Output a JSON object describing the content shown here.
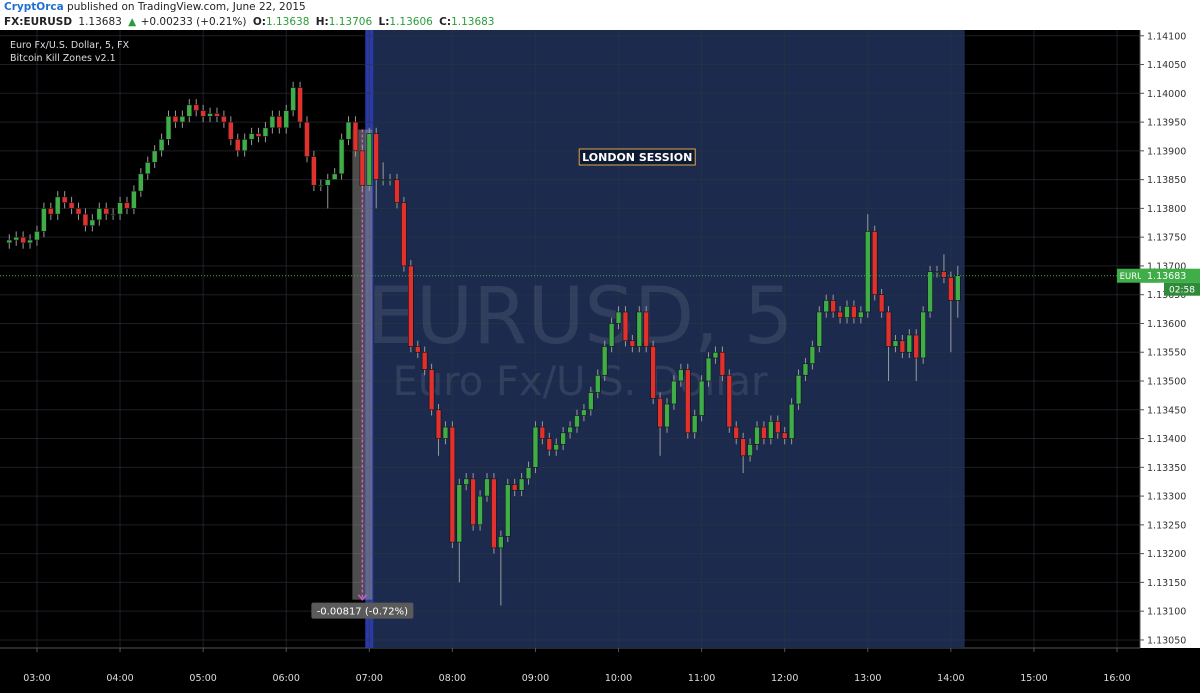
{
  "header": {
    "publisher": "CryptOrca",
    "published": "published on TradingView.com, June 22, 2015",
    "symbol": "FX:EURUSD",
    "price": "1.13683",
    "arrow": "▲",
    "change": "+0.00233 (+0.21%)",
    "o_label": "O:",
    "o": "1.13638",
    "h_label": "H:",
    "h": "1.13706",
    "l_label": "L:",
    "l": "1.13606",
    "c_label": "C:",
    "c": "1.13683"
  },
  "chart_data": {
    "type": "candlestick",
    "legend": [
      "Euro Fx/U.S. Dollar, 5, FX",
      "Bitcoin Kill Zones v2.1"
    ],
    "watermark": "EURUSD, 5",
    "watermark_sub": "Euro Fx/U.S. Dollar",
    "up_color": "#3fae49",
    "down_color": "#e0312f",
    "grid": true,
    "xlim": [
      153.3,
      976.6
    ],
    "ylim": [
      1.13036,
      1.1411
    ],
    "xticks": [
      {
        "value": 180,
        "label": "03:00"
      },
      {
        "value": 240,
        "label": "04:00"
      },
      {
        "value": 300,
        "label": "05:00"
      },
      {
        "value": 360,
        "label": "06:00"
      },
      {
        "value": 420,
        "label": "07:00"
      },
      {
        "value": 480,
        "label": "08:00"
      },
      {
        "value": 540,
        "label": "09:00"
      },
      {
        "value": 600,
        "label": "10:00"
      },
      {
        "value": 660,
        "label": "11:00"
      },
      {
        "value": 720,
        "label": "12:00"
      },
      {
        "value": 780,
        "label": "13:00"
      },
      {
        "value": 840,
        "label": "14:00"
      },
      {
        "value": 900,
        "label": "15:00"
      },
      {
        "value": 960,
        "label": "16:00"
      }
    ],
    "yticks": [
      {
        "value": 1.141,
        "label": "1.14100"
      },
      {
        "value": 1.1405,
        "label": "1.14050"
      },
      {
        "value": 1.14,
        "label": "1.14000"
      },
      {
        "value": 1.1395,
        "label": "1.13950"
      },
      {
        "value": 1.139,
        "label": "1.13900"
      },
      {
        "value": 1.1385,
        "label": "1.13850"
      },
      {
        "value": 1.138,
        "label": "1.13800"
      },
      {
        "value": 1.1375,
        "label": "1.13750"
      },
      {
        "value": 1.137,
        "label": "1.13700"
      },
      {
        "value": 1.1365,
        "label": "1.13650"
      },
      {
        "value": 1.136,
        "label": "1.13600"
      },
      {
        "value": 1.1355,
        "label": "1.13550"
      },
      {
        "value": 1.135,
        "label": "1.13500"
      },
      {
        "value": 1.1345,
        "label": "1.13450"
      },
      {
        "value": 1.134,
        "label": "1.13400"
      },
      {
        "value": 1.1335,
        "label": "1.13350"
      },
      {
        "value": 1.133,
        "label": "1.13300"
      },
      {
        "value": 1.1325,
        "label": "1.13250"
      },
      {
        "value": 1.132,
        "label": "1.13200"
      },
      {
        "value": 1.1315,
        "label": "1.13150"
      },
      {
        "value": 1.131,
        "label": "1.13100"
      },
      {
        "value": 1.1305,
        "label": "1.13050"
      }
    ],
    "session": {
      "label": "LONDON SESSION",
      "start": 420,
      "end": 850
    },
    "measure": {
      "label": "-0.00817 (-0.72%)",
      "time": 415,
      "from": 1.13937,
      "to": 1.1312
    },
    "last_price": 1.13683,
    "symbol_tag": "EURUSD",
    "countdown": "02:58",
    "x": [
      160,
      165,
      170,
      175,
      180,
      185,
      190,
      195,
      200,
      205,
      210,
      215,
      220,
      225,
      230,
      235,
      240,
      245,
      250,
      255,
      260,
      265,
      270,
      275,
      280,
      285,
      290,
      295,
      300,
      305,
      310,
      315,
      320,
      325,
      330,
      335,
      340,
      345,
      350,
      355,
      360,
      365,
      370,
      375,
      380,
      385,
      390,
      395,
      400,
      405,
      410,
      415,
      420,
      425,
      430,
      435,
      440,
      445,
      450,
      455,
      460,
      465,
      470,
      475,
      480,
      485,
      490,
      495,
      500,
      505,
      510,
      515,
      520,
      525,
      530,
      535,
      540,
      545,
      550,
      555,
      560,
      565,
      570,
      575,
      580,
      585,
      590,
      595,
      600,
      605,
      610,
      615,
      620,
      625,
      630,
      635,
      640,
      645,
      650,
      655,
      660,
      665,
      670,
      675,
      680,
      685,
      690,
      695,
      700,
      705,
      710,
      715,
      720,
      725,
      730,
      735,
      740,
      745,
      750,
      755,
      760,
      765,
      770,
      775,
      780,
      785,
      790,
      795,
      800,
      805,
      810,
      815,
      820,
      825,
      830,
      835,
      840,
      845
    ],
    "candles": [
      [
        1.1374,
        1.13755,
        1.1373,
        1.13745
      ],
      [
        1.13745,
        1.1376,
        1.13735,
        1.1375
      ],
      [
        1.1375,
        1.1376,
        1.1373,
        1.1374
      ],
      [
        1.1374,
        1.13755,
        1.1373,
        1.13745
      ],
      [
        1.13745,
        1.1377,
        1.13735,
        1.1376
      ],
      [
        1.1376,
        1.1381,
        1.1375,
        1.138
      ],
      [
        1.138,
        1.1381,
        1.1378,
        1.1379
      ],
      [
        1.1379,
        1.1383,
        1.1378,
        1.1382
      ],
      [
        1.1382,
        1.1383,
        1.138,
        1.1381
      ],
      [
        1.1381,
        1.1382,
        1.1379,
        1.138
      ],
      [
        1.138,
        1.1381,
        1.1378,
        1.1379
      ],
      [
        1.1379,
        1.138,
        1.1376,
        1.1377
      ],
      [
        1.1377,
        1.1379,
        1.1376,
        1.1378
      ],
      [
        1.1378,
        1.1381,
        1.1377,
        1.138
      ],
      [
        1.138,
        1.1381,
        1.1378,
        1.1379
      ],
      [
        1.1379,
        1.138,
        1.1378,
        1.1379
      ],
      [
        1.1379,
        1.1382,
        1.1378,
        1.1381
      ],
      [
        1.1381,
        1.1382,
        1.1379,
        1.138
      ],
      [
        1.138,
        1.1384,
        1.1379,
        1.1383
      ],
      [
        1.1383,
        1.1387,
        1.1382,
        1.1386
      ],
      [
        1.1386,
        1.1389,
        1.1385,
        1.1388
      ],
      [
        1.1388,
        1.1391,
        1.1387,
        1.139
      ],
      [
        1.139,
        1.1393,
        1.1389,
        1.1392
      ],
      [
        1.1392,
        1.1397,
        1.1391,
        1.1396
      ],
      [
        1.1396,
        1.1397,
        1.1394,
        1.1395
      ],
      [
        1.1395,
        1.1397,
        1.1394,
        1.1396
      ],
      [
        1.1396,
        1.1399,
        1.1395,
        1.1398
      ],
      [
        1.1398,
        1.1399,
        1.1396,
        1.1397
      ],
      [
        1.1397,
        1.1398,
        1.1395,
        1.1396
      ],
      [
        1.1396,
        1.13975,
        1.1395,
        1.13965
      ],
      [
        1.13965,
        1.13975,
        1.1395,
        1.1396
      ],
      [
        1.1396,
        1.1397,
        1.1394,
        1.1395
      ],
      [
        1.1395,
        1.1396,
        1.1391,
        1.1392
      ],
      [
        1.1392,
        1.1393,
        1.1389,
        1.139
      ],
      [
        1.139,
        1.1393,
        1.1389,
        1.1392
      ],
      [
        1.1392,
        1.1394,
        1.1391,
        1.1393
      ],
      [
        1.1393,
        1.1394,
        1.13915,
        1.13925
      ],
      [
        1.13925,
        1.1395,
        1.13915,
        1.1394
      ],
      [
        1.1394,
        1.1397,
        1.1393,
        1.1396
      ],
      [
        1.1396,
        1.1397,
        1.1393,
        1.1394
      ],
      [
        1.1394,
        1.1398,
        1.1393,
        1.1397
      ],
      [
        1.1397,
        1.1402,
        1.1396,
        1.1401
      ],
      [
        1.1401,
        1.1402,
        1.1394,
        1.1395
      ],
      [
        1.1395,
        1.1396,
        1.1388,
        1.1389
      ],
      [
        1.1389,
        1.139,
        1.1383,
        1.1384
      ],
      [
        1.1384,
        1.1385,
        1.1383,
        1.1384
      ],
      [
        1.1384,
        1.1386,
        1.138,
        1.1385
      ],
      [
        1.1385,
        1.1387,
        1.1385,
        1.1386
      ],
      [
        1.1386,
        1.1393,
        1.1385,
        1.1392
      ],
      [
        1.1392,
        1.1396,
        1.1391,
        1.1395
      ],
      [
        1.1395,
        1.1396,
        1.1389,
        1.139
      ],
      [
        1.139,
        1.1391,
        1.1383,
        1.1384
      ],
      [
        1.1384,
        1.1394,
        1.1383,
        1.1393
      ],
      [
        1.1393,
        1.1394,
        1.138,
        1.1385
      ],
      [
        1.1385,
        1.1388,
        1.1384,
        1.1385
      ],
      [
        1.1385,
        1.1386,
        1.1384,
        1.1385
      ],
      [
        1.1385,
        1.1386,
        1.138,
        1.1381
      ],
      [
        1.1381,
        1.1382,
        1.1369,
        1.137
      ],
      [
        1.137,
        1.1371,
        1.1355,
        1.1356
      ],
      [
        1.1356,
        1.1357,
        1.1354,
        1.1355
      ],
      [
        1.1355,
        1.1356,
        1.1351,
        1.1352
      ],
      [
        1.1352,
        1.1353,
        1.1344,
        1.1345
      ],
      [
        1.1345,
        1.1346,
        1.1337,
        1.134
      ],
      [
        1.134,
        1.1343,
        1.1339,
        1.1342
      ],
      [
        1.1342,
        1.1343,
        1.1321,
        1.1322
      ],
      [
        1.1322,
        1.1333,
        1.1315,
        1.1332
      ],
      [
        1.1332,
        1.1334,
        1.1331,
        1.1333
      ],
      [
        1.1333,
        1.1334,
        1.1324,
        1.1325
      ],
      [
        1.1325,
        1.1331,
        1.1324,
        1.133
      ],
      [
        1.133,
        1.1334,
        1.1329,
        1.1333
      ],
      [
        1.1333,
        1.1334,
        1.132,
        1.1321
      ],
      [
        1.1321,
        1.1324,
        1.1311,
        1.1323
      ],
      [
        1.1323,
        1.1333,
        1.1322,
        1.1332
      ],
      [
        1.1332,
        1.1333,
        1.133,
        1.1331
      ],
      [
        1.1331,
        1.1334,
        1.133,
        1.1333
      ],
      [
        1.1333,
        1.1336,
        1.1332,
        1.1335
      ],
      [
        1.1335,
        1.1343,
        1.1334,
        1.1342
      ],
      [
        1.1342,
        1.1343,
        1.1339,
        1.134
      ],
      [
        1.134,
        1.1341,
        1.1337,
        1.1338
      ],
      [
        1.1338,
        1.134,
        1.1337,
        1.1339
      ],
      [
        1.1339,
        1.1342,
        1.1338,
        1.1341
      ],
      [
        1.1341,
        1.1343,
        1.134,
        1.1342
      ],
      [
        1.1342,
        1.1345,
        1.1341,
        1.1344
      ],
      [
        1.1344,
        1.1346,
        1.1343,
        1.1345
      ],
      [
        1.1345,
        1.1349,
        1.1344,
        1.1348
      ],
      [
        1.1348,
        1.1352,
        1.1347,
        1.1351
      ],
      [
        1.1351,
        1.1357,
        1.135,
        1.1356
      ],
      [
        1.1356,
        1.1361,
        1.1355,
        1.136
      ],
      [
        1.136,
        1.1363,
        1.1359,
        1.1362
      ],
      [
        1.1362,
        1.1363,
        1.1356,
        1.1357
      ],
      [
        1.1357,
        1.1358,
        1.1355,
        1.1356
      ],
      [
        1.1356,
        1.1363,
        1.1355,
        1.1362
      ],
      [
        1.1362,
        1.1363,
        1.1355,
        1.1356
      ],
      [
        1.1356,
        1.1357,
        1.1346,
        1.1347
      ],
      [
        1.1347,
        1.1348,
        1.1337,
        1.1342
      ],
      [
        1.1342,
        1.1347,
        1.1341,
        1.1346
      ],
      [
        1.1346,
        1.1351,
        1.1345,
        1.135
      ],
      [
        1.135,
        1.1353,
        1.1349,
        1.1352
      ],
      [
        1.1352,
        1.1353,
        1.134,
        1.1341
      ],
      [
        1.1341,
        1.1345,
        1.134,
        1.1344
      ],
      [
        1.1344,
        1.1351,
        1.1343,
        1.135
      ],
      [
        1.135,
        1.1355,
        1.1349,
        1.1354
      ],
      [
        1.1354,
        1.1356,
        1.1353,
        1.1355
      ],
      [
        1.1355,
        1.1356,
        1.135,
        1.1351
      ],
      [
        1.1351,
        1.1352,
        1.1341,
        1.1342
      ],
      [
        1.1342,
        1.1343,
        1.1339,
        1.134
      ],
      [
        1.134,
        1.1341,
        1.1334,
        1.1337
      ],
      [
        1.1337,
        1.134,
        1.1336,
        1.1339
      ],
      [
        1.1339,
        1.1343,
        1.1338,
        1.1342
      ],
      [
        1.1342,
        1.1343,
        1.1339,
        1.134
      ],
      [
        1.134,
        1.1344,
        1.1339,
        1.1343
      ],
      [
        1.1343,
        1.1344,
        1.134,
        1.1341
      ],
      [
        1.1341,
        1.1342,
        1.1339,
        1.134
      ],
      [
        1.134,
        1.1347,
        1.1339,
        1.1346
      ],
      [
        1.1346,
        1.1352,
        1.1345,
        1.1351
      ],
      [
        1.1351,
        1.1354,
        1.135,
        1.1353
      ],
      [
        1.1353,
        1.1357,
        1.1352,
        1.1356
      ],
      [
        1.1356,
        1.1363,
        1.1355,
        1.1362
      ],
      [
        1.1362,
        1.1365,
        1.1361,
        1.1364
      ],
      [
        1.1364,
        1.1365,
        1.1361,
        1.1362
      ],
      [
        1.1362,
        1.1363,
        1.136,
        1.1361
      ],
      [
        1.1361,
        1.1364,
        1.136,
        1.1363
      ],
      [
        1.1363,
        1.1364,
        1.136,
        1.1361
      ],
      [
        1.1361,
        1.1363,
        1.136,
        1.1362
      ],
      [
        1.1362,
        1.1379,
        1.1361,
        1.1376
      ],
      [
        1.1376,
        1.1377,
        1.1364,
        1.1365
      ],
      [
        1.1365,
        1.1366,
        1.1361,
        1.1362
      ],
      [
        1.1362,
        1.1363,
        1.135,
        1.1356
      ],
      [
        1.1356,
        1.1358,
        1.1355,
        1.1357
      ],
      [
        1.1357,
        1.1358,
        1.1354,
        1.1355
      ],
      [
        1.1355,
        1.1359,
        1.1354,
        1.1358
      ],
      [
        1.1358,
        1.1359,
        1.135,
        1.1354
      ],
      [
        1.1354,
        1.1363,
        1.1353,
        1.1362
      ],
      [
        1.1362,
        1.137,
        1.1361,
        1.1369
      ],
      [
        1.1369,
        1.137,
        1.1368,
        1.1369
      ],
      [
        1.1369,
        1.1372,
        1.1367,
        1.1368
      ],
      [
        1.1368,
        1.1369,
        1.1355,
        1.1364
      ],
      [
        1.1364,
        1.137,
        1.1361,
        1.13683
      ]
    ]
  }
}
